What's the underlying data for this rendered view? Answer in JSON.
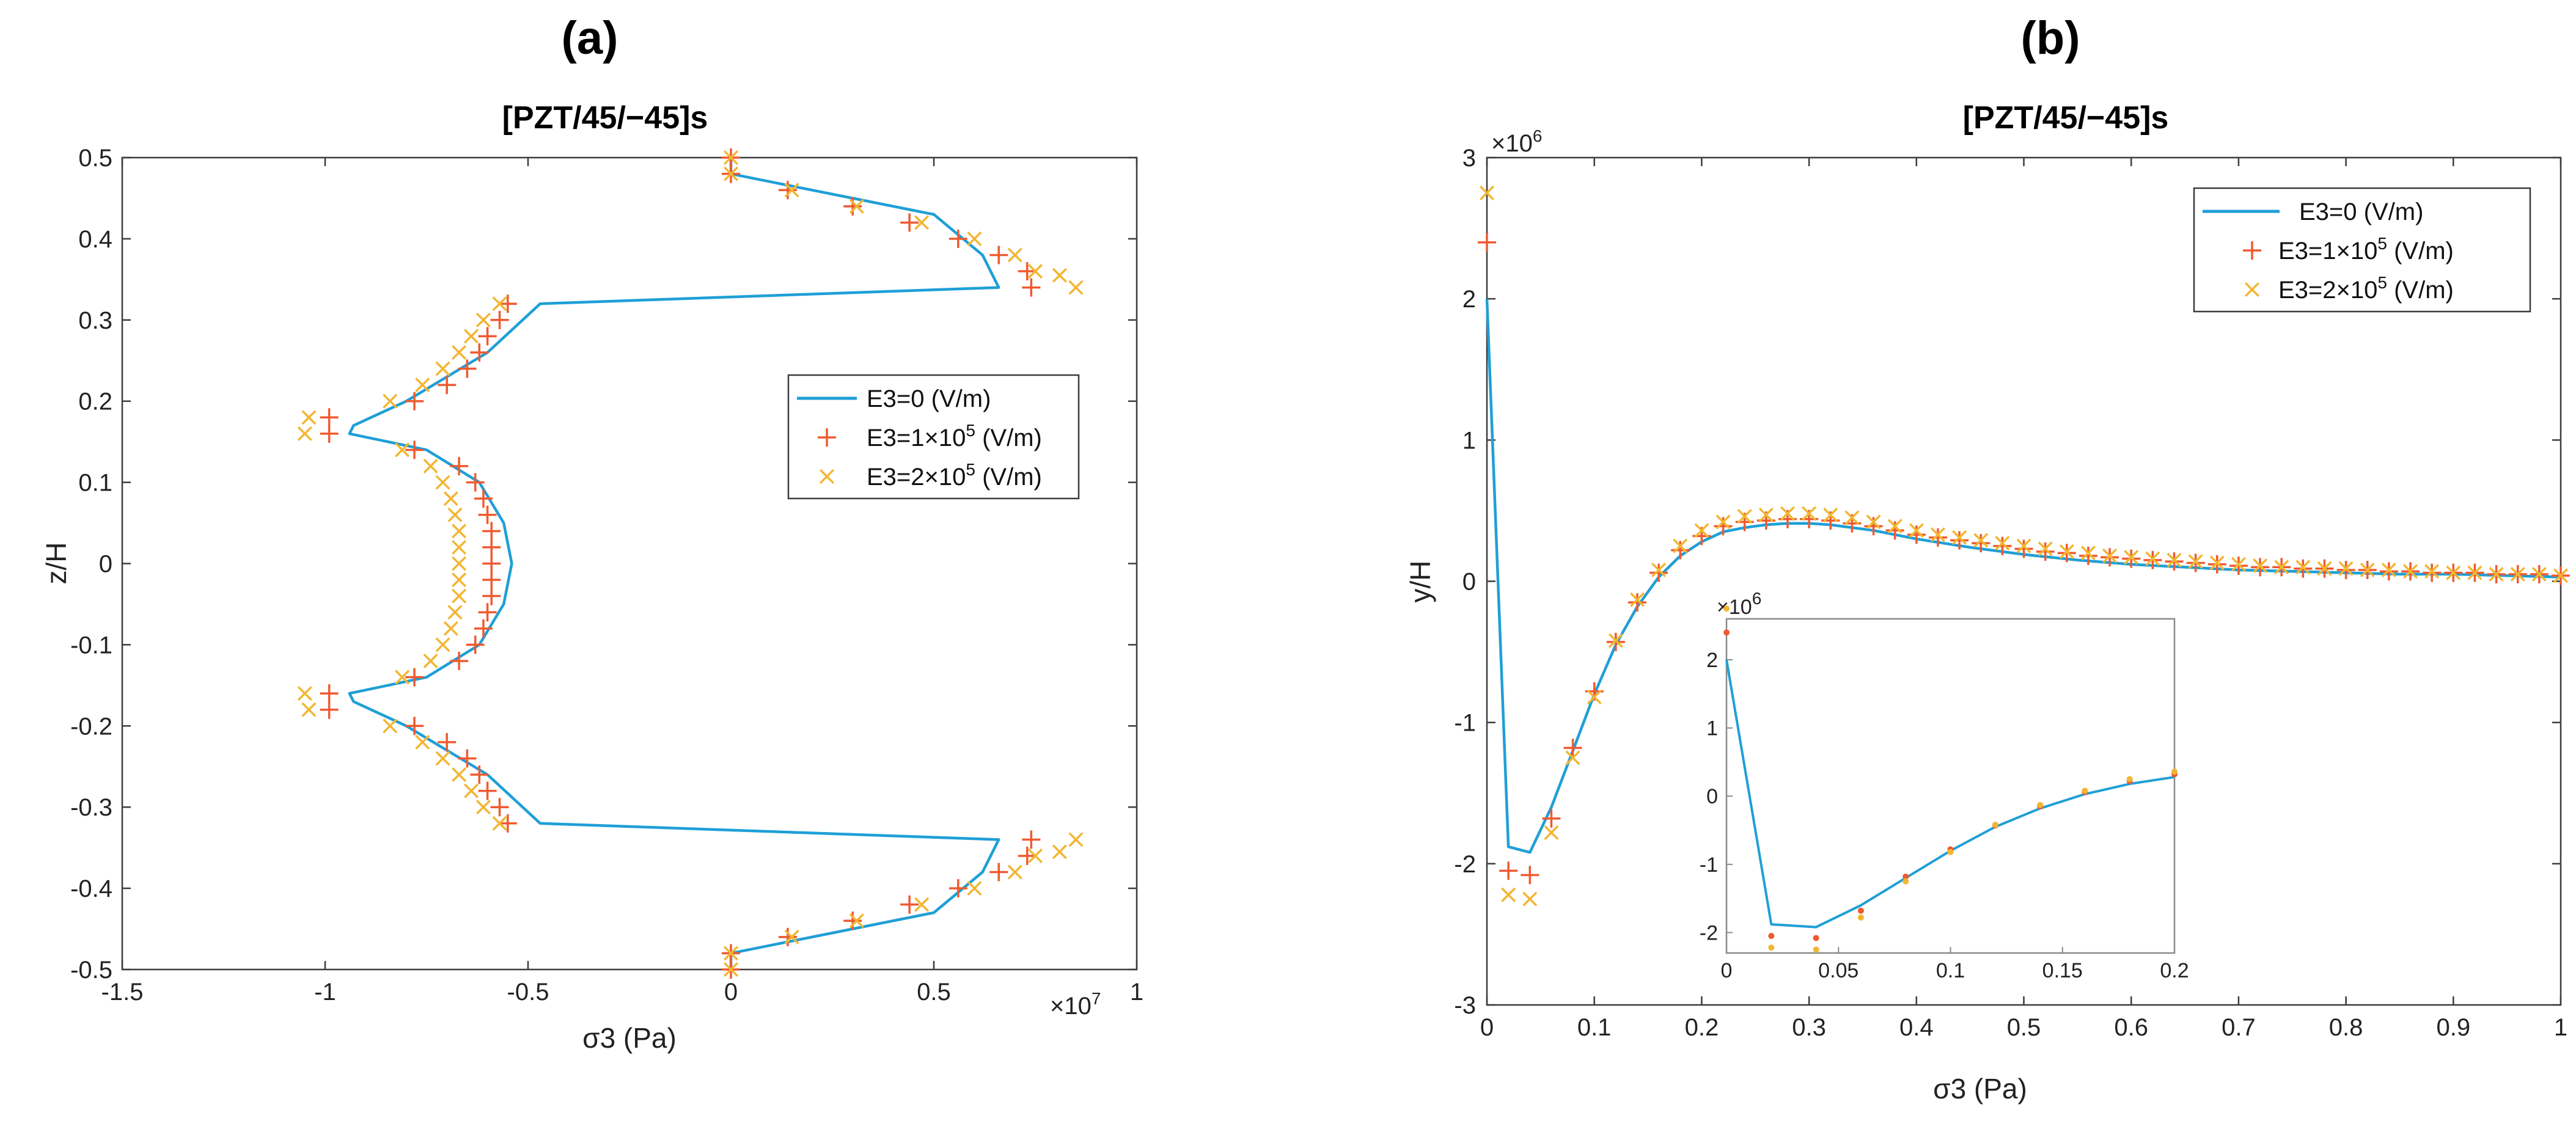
{
  "colors": {
    "series0": "#1f9fd6",
    "series1": "#ef5a30",
    "series2": "#f2b632"
  },
  "chart_data": [
    {
      "panel_label": "(a)",
      "type": "line",
      "title": "[PZT/45/−45]s",
      "xlabel": "σ3 (Pa)",
      "ylabel": "z/H",
      "x_exponent": "×10",
      "x_exponent_power": "7",
      "xlim": [
        -1.5,
        1.0
      ],
      "ylim": [
        -0.5,
        0.5
      ],
      "xticks": [
        -1.5,
        -1,
        -0.5,
        0,
        0.5,
        1
      ],
      "xtick_labels": [
        "-1.5",
        "-1",
        "-0.5",
        "0",
        "0.5",
        "1"
      ],
      "yticks": [
        -0.5,
        -0.4,
        -0.3,
        -0.2,
        -0.1,
        0,
        0.1,
        0.2,
        0.3,
        0.4,
        0.5
      ],
      "ytick_labels": [
        "-0.5",
        "-0.4",
        "-0.3",
        "-0.2",
        "-0.1",
        "0",
        "0.1",
        "0.2",
        "0.3",
        "0.4",
        "0.5"
      ],
      "legend_position": "center-right",
      "legend": [
        {
          "label": "E3=0 (V/m)",
          "marker": "line"
        },
        {
          "label_base": "E3=1×10",
          "label_sup": "5",
          "label_unit": " (V/m)",
          "marker": "plus"
        },
        {
          "label_base": "E3=2×10",
          "label_sup": "5",
          "label_unit": " (V/m)",
          "marker": "x"
        }
      ],
      "series": [
        {
          "name": "E3=0 (V/m)",
          "style": "line",
          "points": [
            [
              0.0,
              -0.5
            ],
            [
              0.0,
              -0.48
            ],
            [
              0.2,
              -0.46
            ],
            [
              0.5,
              -0.43
            ],
            [
              0.62,
              -0.38
            ],
            [
              0.66,
              -0.34
            ],
            [
              -0.47,
              -0.32
            ],
            [
              -0.6,
              -0.26
            ],
            [
              -0.8,
              -0.2
            ],
            [
              -0.93,
              -0.17
            ],
            [
              -0.94,
              -0.16
            ],
            [
              -0.75,
              -0.14
            ],
            [
              -0.62,
              -0.1
            ],
            [
              -0.56,
              -0.05
            ],
            [
              -0.54,
              0.0
            ],
            [
              -0.56,
              0.05
            ],
            [
              -0.62,
              0.1
            ],
            [
              -0.75,
              0.14
            ],
            [
              -0.94,
              0.16
            ],
            [
              -0.93,
              0.17
            ],
            [
              -0.8,
              0.2
            ],
            [
              -0.6,
              0.26
            ],
            [
              -0.47,
              0.32
            ],
            [
              0.66,
              0.34
            ],
            [
              0.62,
              0.38
            ],
            [
              0.5,
              0.43
            ],
            [
              0.2,
              0.46
            ],
            [
              0.0,
              0.48
            ],
            [
              0.0,
              0.5
            ]
          ]
        },
        {
          "name": "E3=1×10^5 (V/m)",
          "style": "plus",
          "points": [
            [
              0.0,
              -0.5
            ],
            [
              0.0,
              -0.48
            ],
            [
              0.14,
              -0.46
            ],
            [
              0.3,
              -0.44
            ],
            [
              0.44,
              -0.42
            ],
            [
              0.56,
              -0.4
            ],
            [
              0.66,
              -0.38
            ],
            [
              0.73,
              -0.36
            ],
            [
              0.74,
              -0.34
            ],
            [
              -0.55,
              -0.32
            ],
            [
              -0.57,
              -0.3
            ],
            [
              -0.6,
              -0.28
            ],
            [
              -0.62,
              -0.26
            ],
            [
              -0.65,
              -0.24
            ],
            [
              -0.7,
              -0.22
            ],
            [
              -0.78,
              -0.2
            ],
            [
              -0.99,
              -0.18
            ],
            [
              -0.99,
              -0.16
            ],
            [
              -0.78,
              -0.14
            ],
            [
              -0.67,
              -0.12
            ],
            [
              -0.63,
              -0.1
            ],
            [
              -0.61,
              -0.08
            ],
            [
              -0.6,
              -0.06
            ],
            [
              -0.59,
              -0.04
            ],
            [
              -0.59,
              -0.02
            ],
            [
              -0.59,
              0.0
            ],
            [
              -0.59,
              0.02
            ],
            [
              -0.59,
              0.04
            ],
            [
              -0.6,
              0.06
            ],
            [
              -0.61,
              0.08
            ],
            [
              -0.63,
              0.1
            ],
            [
              -0.67,
              0.12
            ],
            [
              -0.78,
              0.14
            ],
            [
              -0.99,
              0.16
            ],
            [
              -0.99,
              0.18
            ],
            [
              -0.78,
              0.2
            ],
            [
              -0.7,
              0.22
            ],
            [
              -0.65,
              0.24
            ],
            [
              -0.62,
              0.26
            ],
            [
              -0.6,
              0.28
            ],
            [
              -0.57,
              0.3
            ],
            [
              -0.55,
              0.32
            ],
            [
              0.74,
              0.34
            ],
            [
              0.73,
              0.36
            ],
            [
              0.66,
              0.38
            ],
            [
              0.56,
              0.4
            ],
            [
              0.44,
              0.42
            ],
            [
              0.3,
              0.44
            ],
            [
              0.14,
              0.46
            ],
            [
              0.0,
              0.48
            ],
            [
              0.0,
              0.5
            ]
          ]
        },
        {
          "name": "E3=2×10^5 (V/m)",
          "style": "x",
          "points": [
            [
              0.0,
              -0.5
            ],
            [
              0.0,
              -0.48
            ],
            [
              0.15,
              -0.46
            ],
            [
              0.31,
              -0.44
            ],
            [
              0.47,
              -0.42
            ],
            [
              0.6,
              -0.4
            ],
            [
              0.7,
              -0.38
            ],
            [
              0.75,
              -0.36
            ],
            [
              0.81,
              -0.355
            ],
            [
              0.85,
              -0.34
            ],
            [
              -0.57,
              -0.32
            ],
            [
              -0.61,
              -0.3
            ],
            [
              -0.64,
              -0.28
            ],
            [
              -0.67,
              -0.26
            ],
            [
              -0.71,
              -0.24
            ],
            [
              -0.76,
              -0.22
            ],
            [
              -0.84,
              -0.2
            ],
            [
              -1.04,
              -0.18
            ],
            [
              -1.05,
              -0.16
            ],
            [
              -0.81,
              -0.14
            ],
            [
              -0.74,
              -0.12
            ],
            [
              -0.71,
              -0.1
            ],
            [
              -0.69,
              -0.08
            ],
            [
              -0.68,
              -0.06
            ],
            [
              -0.67,
              -0.04
            ],
            [
              -0.67,
              -0.02
            ],
            [
              -0.67,
              0.0
            ],
            [
              -0.67,
              0.02
            ],
            [
              -0.67,
              0.04
            ],
            [
              -0.68,
              0.06
            ],
            [
              -0.69,
              0.08
            ],
            [
              -0.71,
              0.1
            ],
            [
              -0.74,
              0.12
            ],
            [
              -0.81,
              0.14
            ],
            [
              -1.05,
              0.16
            ],
            [
              -1.04,
              0.18
            ],
            [
              -0.84,
              0.2
            ],
            [
              -0.76,
              0.22
            ],
            [
              -0.71,
              0.24
            ],
            [
              -0.67,
              0.26
            ],
            [
              -0.64,
              0.28
            ],
            [
              -0.61,
              0.3
            ],
            [
              -0.57,
              0.32
            ],
            [
              0.85,
              0.34
            ],
            [
              0.81,
              0.355
            ],
            [
              0.75,
              0.36
            ],
            [
              0.7,
              0.38
            ],
            [
              0.6,
              0.4
            ],
            [
              0.47,
              0.42
            ],
            [
              0.31,
              0.44
            ],
            [
              0.15,
              0.46
            ],
            [
              0.0,
              0.48
            ],
            [
              0.0,
              0.5
            ]
          ]
        }
      ]
    },
    {
      "panel_label": "(b)",
      "type": "line",
      "title": "[PZT/45/−45]s",
      "xlabel": "σ3 (Pa)",
      "ylabel": "y/H",
      "y_exponent": "×10",
      "y_exponent_power": "6",
      "xlim": [
        0,
        1
      ],
      "ylim": [
        -3,
        3
      ],
      "xticks": [
        0,
        0.1,
        0.2,
        0.3,
        0.4,
        0.5,
        0.6,
        0.7,
        0.8,
        0.9,
        1
      ],
      "xtick_labels": [
        "0",
        "0.1",
        "0.2",
        "0.3",
        "0.4",
        "0.5",
        "0.6",
        "0.7",
        "0.8",
        "0.9",
        "1"
      ],
      "yticks": [
        -3,
        -2,
        -1,
        0,
        1,
        2,
        3
      ],
      "ytick_labels": [
        "-3",
        "-2",
        "-1",
        "0",
        "1",
        "2",
        "3"
      ],
      "legend_position": "top-right",
      "legend": [
        {
          "label": "E3=0 (V/m)",
          "marker": "line"
        },
        {
          "label_base": "E3=1×10",
          "label_sup": "5",
          "label_unit": " (V/m)",
          "marker": "plus"
        },
        {
          "label_base": "E3=2×10",
          "label_sup": "5",
          "label_unit": " (V/m)",
          "marker": "x"
        }
      ],
      "series": [
        {
          "name": "E3=0 (V/m)",
          "style": "line",
          "x": [
            0,
            0.02,
            0.04,
            0.06,
            0.08,
            0.1,
            0.12,
            0.14,
            0.16,
            0.18,
            0.2,
            0.22,
            0.24,
            0.26,
            0.28,
            0.3,
            0.32,
            0.34,
            0.36,
            0.38,
            0.4,
            0.45,
            0.5,
            0.55,
            0.6,
            0.65,
            0.7,
            0.75,
            0.8,
            0.85,
            0.9,
            0.95,
            1.0
          ],
          "values": [
            2.0,
            -1.88,
            -1.92,
            -1.6,
            -1.2,
            -0.8,
            -0.45,
            -0.18,
            0.03,
            0.18,
            0.28,
            0.35,
            0.38,
            0.4,
            0.41,
            0.41,
            0.4,
            0.38,
            0.36,
            0.33,
            0.3,
            0.24,
            0.19,
            0.15,
            0.12,
            0.1,
            0.08,
            0.07,
            0.06,
            0.05,
            0.05,
            0.04,
            0.03
          ]
        },
        {
          "name": "E3=1×10^5 (V/m)",
          "style": "plus",
          "x": [
            0,
            0.02,
            0.04,
            0.06,
            0.08,
            0.1,
            0.12,
            0.14,
            0.16,
            0.18,
            0.2,
            0.22,
            0.24,
            0.26,
            0.28,
            0.3,
            0.32,
            0.34,
            0.36,
            0.38,
            0.4,
            0.42,
            0.44,
            0.46,
            0.48,
            0.5,
            0.52,
            0.54,
            0.56,
            0.58,
            0.6,
            0.62,
            0.64,
            0.66,
            0.68,
            0.7,
            0.72,
            0.74,
            0.76,
            0.78,
            0.8,
            0.82,
            0.84,
            0.86,
            0.88,
            0.9,
            0.92,
            0.94,
            0.96,
            0.98,
            1.0
          ],
          "values": [
            2.4,
            -2.05,
            -2.08,
            -1.68,
            -1.18,
            -0.78,
            -0.43,
            -0.15,
            0.06,
            0.22,
            0.32,
            0.39,
            0.42,
            0.43,
            0.44,
            0.44,
            0.43,
            0.41,
            0.39,
            0.36,
            0.33,
            0.31,
            0.29,
            0.27,
            0.25,
            0.23,
            0.21,
            0.2,
            0.18,
            0.17,
            0.16,
            0.15,
            0.14,
            0.13,
            0.12,
            0.11,
            0.1,
            0.1,
            0.09,
            0.09,
            0.08,
            0.08,
            0.07,
            0.07,
            0.06,
            0.06,
            0.06,
            0.05,
            0.05,
            0.05,
            0.04
          ]
        },
        {
          "name": "E3=2×10^5 (V/m)",
          "style": "x",
          "x": [
            0,
            0.02,
            0.04,
            0.06,
            0.08,
            0.1,
            0.12,
            0.14,
            0.16,
            0.18,
            0.2,
            0.22,
            0.24,
            0.26,
            0.28,
            0.3,
            0.32,
            0.34,
            0.36,
            0.38,
            0.4,
            0.42,
            0.44,
            0.46,
            0.48,
            0.5,
            0.52,
            0.54,
            0.56,
            0.58,
            0.6,
            0.62,
            0.64,
            0.66,
            0.68,
            0.7,
            0.72,
            0.74,
            0.76,
            0.78,
            0.8,
            0.82,
            0.84,
            0.86,
            0.88,
            0.9,
            0.92,
            0.94,
            0.96,
            0.98,
            1.0
          ],
          "values": [
            2.75,
            -2.22,
            -2.25,
            -1.78,
            -1.25,
            -0.82,
            -0.42,
            -0.13,
            0.08,
            0.25,
            0.36,
            0.42,
            0.46,
            0.47,
            0.48,
            0.48,
            0.47,
            0.45,
            0.42,
            0.39,
            0.36,
            0.33,
            0.31,
            0.29,
            0.27,
            0.25,
            0.23,
            0.21,
            0.2,
            0.18,
            0.17,
            0.16,
            0.15,
            0.14,
            0.13,
            0.12,
            0.11,
            0.1,
            0.1,
            0.09,
            0.09,
            0.08,
            0.08,
            0.07,
            0.07,
            0.06,
            0.06,
            0.05,
            0.05,
            0.05,
            0.04
          ]
        }
      ],
      "inset": {
        "xlim": [
          0,
          0.2
        ],
        "ylim": [
          -2.3,
          2.6
        ],
        "y_exponent": "×10",
        "y_exponent_power": "6",
        "xticks": [
          0,
          0.05,
          0.1,
          0.15,
          0.2
        ],
        "xtick_labels": [
          "0",
          "0.05",
          "0.1",
          "0.15",
          "0.2"
        ],
        "yticks": [
          -2,
          -1,
          0,
          1,
          2
        ],
        "ytick_labels": [
          "-2",
          "-1",
          "0",
          "1",
          "2"
        ]
      }
    }
  ]
}
